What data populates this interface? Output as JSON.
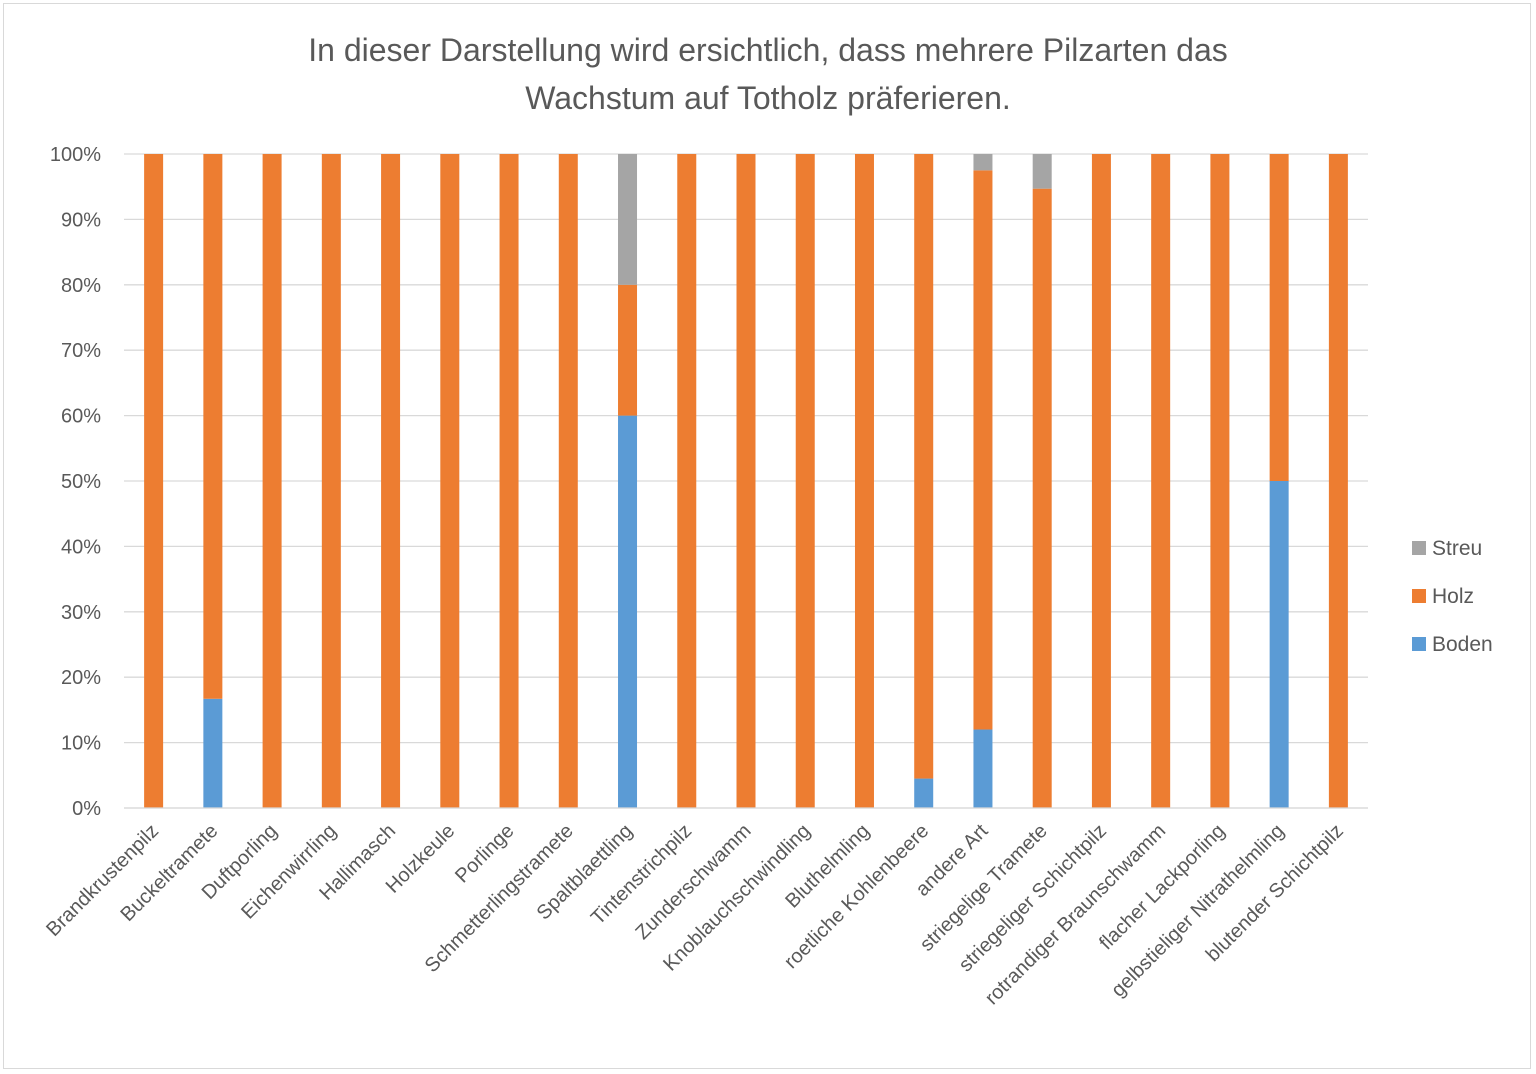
{
  "chart_data": {
    "type": "bar",
    "stacked": "percent",
    "title_lines": [
      "In dieser Darstellung wird ersichtlich, dass mehrere Pilzarten das",
      "Wachstum auf Totholz präferieren."
    ],
    "xlabel": "",
    "ylabel": "",
    "ylim": [
      0,
      100
    ],
    "y_ticks": [
      "0%",
      "10%",
      "20%",
      "30%",
      "40%",
      "50%",
      "60%",
      "70%",
      "80%",
      "90%",
      "100%"
    ],
    "grid": true,
    "legend_position": "right",
    "legend_order": [
      "Streu",
      "Holz",
      "Boden"
    ],
    "categories": [
      "Brandkrustenpilz",
      "Buckeltramete",
      "Duftporling",
      "Eichenwirrling",
      "Hallimasch",
      "Holzkeule",
      "Porlinge",
      "Schmetterlingstramete",
      "Spaltblaettling",
      "Tintenstrichpilz",
      "Zunderschwamm",
      "Knoblauchschwindling",
      "Bluthelmling",
      "roetliche Kohlenbeere",
      "andere Art",
      "striegelige Tramete",
      "striegeliger Schichtpilz",
      "rotrandiger Braunschwamm",
      "flacher Lackporling",
      "gelbstieliger Nitrathelmling",
      "blutender Schichtpilz"
    ],
    "series": [
      {
        "name": "Boden",
        "color": "#5b9bd5",
        "values": [
          0,
          16.7,
          0,
          0,
          0,
          0,
          0,
          0,
          60,
          0,
          0,
          0,
          0,
          4.5,
          12,
          0,
          0,
          0,
          0,
          50,
          0
        ]
      },
      {
        "name": "Holz",
        "color": "#ed7d31",
        "values": [
          100,
          83.3,
          100,
          100,
          100,
          100,
          100,
          100,
          20,
          100,
          100,
          100,
          100,
          95.5,
          85.5,
          94.7,
          100,
          100,
          100,
          50,
          100
        ]
      },
      {
        "name": "Streu",
        "color": "#a5a5a5",
        "values": [
          0,
          0,
          0,
          0,
          0,
          0,
          0,
          0,
          20,
          0,
          0,
          0,
          0,
          0,
          2.5,
          5.3,
          0,
          0,
          0,
          0,
          0
        ]
      }
    ]
  }
}
